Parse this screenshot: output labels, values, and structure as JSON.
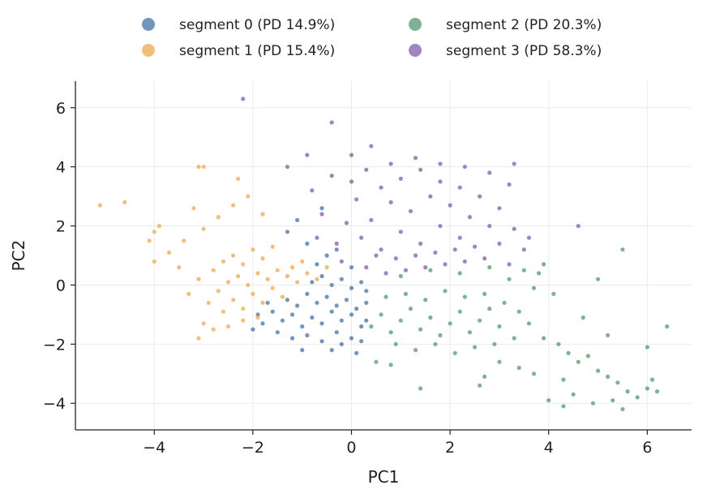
{
  "chart_data": {
    "type": "scatter",
    "title": "",
    "xlabel": "PC1",
    "ylabel": "PC2",
    "xlim": [
      -5.6,
      6.9
    ],
    "ylim": [
      -4.9,
      6.9
    ],
    "xticks": [
      -4,
      -2,
      0,
      2,
      4,
      6
    ],
    "yticks": [
      -4,
      -2,
      0,
      2,
      4,
      6
    ],
    "xtick_labels": [
      "−4",
      "−2",
      "0",
      "2",
      "4",
      "6"
    ],
    "ytick_labels": [
      "−4",
      "−2",
      "0",
      "2",
      "4",
      "6"
    ],
    "grid": true,
    "legend_position": "top-center",
    "series": [
      {
        "name": "segment 0 (PD 14.9%)",
        "color": "#3a6ea5",
        "points": [
          [
            -1.6,
            -0.9
          ],
          [
            -1.4,
            -1.2
          ],
          [
            -1.2,
            -1.0
          ],
          [
            -1.0,
            -1.4
          ],
          [
            -0.8,
            -1.1
          ],
          [
            -0.6,
            -1.3
          ],
          [
            -0.4,
            -0.9
          ],
          [
            -0.2,
            -1.2
          ],
          [
            0.0,
            -1.0
          ],
          [
            0.2,
            -1.4
          ],
          [
            -1.3,
            -0.5
          ],
          [
            -1.1,
            -0.7
          ],
          [
            -0.9,
            -0.3
          ],
          [
            -0.7,
            -0.6
          ],
          [
            -0.5,
            -0.4
          ],
          [
            -0.3,
            -0.7
          ],
          [
            -0.1,
            -0.5
          ],
          [
            0.1,
            -0.8
          ],
          [
            0.3,
            -0.6
          ],
          [
            -0.8,
            0.1
          ],
          [
            -0.6,
            0.3
          ],
          [
            -0.4,
            0.0
          ],
          [
            -0.2,
            0.2
          ],
          [
            0.0,
            -0.1
          ],
          [
            0.2,
            0.1
          ],
          [
            -1.5,
            -1.6
          ],
          [
            -1.2,
            -1.8
          ],
          [
            -0.9,
            -1.7
          ],
          [
            -0.6,
            -1.9
          ],
          [
            -0.3,
            -1.6
          ],
          [
            0.0,
            -1.8
          ],
          [
            0.2,
            -1.9
          ],
          [
            -1.8,
            -1.3
          ],
          [
            -1.7,
            -0.6
          ],
          [
            -0.7,
            0.7
          ],
          [
            -0.5,
            1.0
          ],
          [
            -0.9,
            1.4
          ],
          [
            -1.1,
            2.2
          ],
          [
            -1.3,
            1.8
          ],
          [
            -0.6,
            2.6
          ],
          [
            -1.0,
            -2.2
          ],
          [
            -0.4,
            -2.2
          ],
          [
            0.1,
            -2.3
          ],
          [
            0.3,
            -1.2
          ],
          [
            0.3,
            -0.2
          ],
          [
            -2.0,
            -1.5
          ],
          [
            -1.9,
            -1.0
          ],
          [
            -0.2,
            -2.0
          ],
          [
            0.0,
            0.6
          ],
          [
            -0.3,
            1.2
          ]
        ]
      },
      {
        "name": "segment 1 (PD 15.4%)",
        "color": "#eca646",
        "points": [
          [
            -2.9,
            -0.6
          ],
          [
            -2.7,
            -0.2
          ],
          [
            -2.6,
            -0.9
          ],
          [
            -2.5,
            0.1
          ],
          [
            -2.4,
            -0.5
          ],
          [
            -2.3,
            0.3
          ],
          [
            -2.2,
            -0.8
          ],
          [
            -2.1,
            0.0
          ],
          [
            -2.0,
            -0.3
          ],
          [
            -1.9,
            0.4
          ],
          [
            -1.8,
            -0.6
          ],
          [
            -1.7,
            0.2
          ],
          [
            -1.6,
            -0.1
          ],
          [
            -1.5,
            0.5
          ],
          [
            -1.4,
            -0.4
          ],
          [
            -1.3,
            0.3
          ],
          [
            -1.2,
            0.6
          ],
          [
            -1.1,
            0.1
          ],
          [
            -1.0,
            0.8
          ],
          [
            -0.9,
            0.4
          ],
          [
            -2.8,
            0.5
          ],
          [
            -2.6,
            0.8
          ],
          [
            -2.4,
            1.0
          ],
          [
            -2.2,
            0.7
          ],
          [
            -2.0,
            1.2
          ],
          [
            -1.8,
            0.9
          ],
          [
            -1.6,
            1.3
          ],
          [
            -3.0,
            -1.3
          ],
          [
            -2.8,
            -1.5
          ],
          [
            -2.5,
            -1.4
          ],
          [
            -2.2,
            -1.2
          ],
          [
            -1.9,
            -1.1
          ],
          [
            -3.1,
            0.2
          ],
          [
            -3.3,
            -0.3
          ],
          [
            -3.5,
            0.6
          ],
          [
            -3.7,
            1.1
          ],
          [
            -3.4,
            1.5
          ],
          [
            -3.0,
            1.9
          ],
          [
            -2.7,
            2.3
          ],
          [
            -2.4,
            2.7
          ],
          [
            -2.1,
            3.0
          ],
          [
            -1.8,
            2.4
          ],
          [
            -3.2,
            2.6
          ],
          [
            -3.1,
            4.0
          ],
          [
            -3.0,
            4.0
          ],
          [
            -5.1,
            2.7
          ],
          [
            -4.6,
            2.8
          ],
          [
            -4.0,
            1.8
          ],
          [
            -3.9,
            2.0
          ],
          [
            -4.1,
            1.5
          ],
          [
            -4.0,
            0.8
          ],
          [
            -0.7,
            0.2
          ],
          [
            -0.5,
            0.6
          ],
          [
            -3.1,
            -1.8
          ],
          [
            -2.3,
            3.6
          ]
        ]
      },
      {
        "name": "segment 2 (PD 20.3%)",
        "color": "#4c9468",
        "points": [
          [
            0.4,
            -1.4
          ],
          [
            0.6,
            -1.0
          ],
          [
            0.8,
            -1.6
          ],
          [
            1.0,
            -1.2
          ],
          [
            1.2,
            -0.8
          ],
          [
            1.4,
            -1.5
          ],
          [
            1.6,
            -1.1
          ],
          [
            1.8,
            -1.7
          ],
          [
            2.0,
            -1.3
          ],
          [
            2.2,
            -0.9
          ],
          [
            2.4,
            -1.6
          ],
          [
            2.6,
            -1.2
          ],
          [
            2.8,
            -0.8
          ],
          [
            3.0,
            -1.4
          ],
          [
            0.7,
            -0.4
          ],
          [
            1.1,
            -0.3
          ],
          [
            1.5,
            -0.5
          ],
          [
            1.9,
            -0.2
          ],
          [
            2.3,
            -0.4
          ],
          [
            2.7,
            -0.3
          ],
          [
            3.1,
            -0.6
          ],
          [
            0.9,
            -2.0
          ],
          [
            1.3,
            -2.2
          ],
          [
            1.7,
            -2.0
          ],
          [
            2.1,
            -2.3
          ],
          [
            2.5,
            -2.1
          ],
          [
            2.9,
            -2.0
          ],
          [
            3.3,
            -1.8
          ],
          [
            1.0,
            0.3
          ],
          [
            1.6,
            0.5
          ],
          [
            2.2,
            0.4
          ],
          [
            2.8,
            0.6
          ],
          [
            3.2,
            0.2
          ],
          [
            3.4,
            -0.9
          ],
          [
            3.6,
            -1.3
          ],
          [
            3.5,
            0.5
          ],
          [
            3.8,
            0.4
          ],
          [
            3.9,
            0.7
          ],
          [
            3.7,
            -0.1
          ],
          [
            4.1,
            -0.3
          ],
          [
            3.9,
            -1.8
          ],
          [
            4.2,
            -2.0
          ],
          [
            4.4,
            -2.3
          ],
          [
            4.6,
            -2.6
          ],
          [
            4.8,
            -2.4
          ],
          [
            5.0,
            -2.9
          ],
          [
            5.2,
            -3.1
          ],
          [
            5.4,
            -3.3
          ],
          [
            5.6,
            -3.6
          ],
          [
            5.8,
            -3.8
          ],
          [
            6.0,
            -3.5
          ],
          [
            6.1,
            -3.2
          ],
          [
            6.2,
            -3.6
          ],
          [
            5.5,
            -4.2
          ],
          [
            5.3,
            -3.9
          ],
          [
            4.9,
            -4.0
          ],
          [
            4.5,
            -3.7
          ],
          [
            4.3,
            -3.2
          ],
          [
            4.0,
            -3.9
          ],
          [
            3.7,
            -3.0
          ],
          [
            3.4,
            -2.8
          ],
          [
            3.0,
            -2.6
          ],
          [
            2.7,
            -3.1
          ],
          [
            1.4,
            -3.5
          ],
          [
            0.5,
            -2.6
          ],
          [
            0.8,
            -2.7
          ],
          [
            5.0,
            0.2
          ],
          [
            5.5,
            1.2
          ],
          [
            6.4,
            -1.4
          ],
          [
            4.7,
            -1.1
          ],
          [
            5.2,
            -1.7
          ],
          [
            6.0,
            -2.1
          ],
          [
            4.3,
            -4.1
          ],
          [
            2.6,
            -3.4
          ]
        ]
      },
      {
        "name": "segment 3 (PD 58.3%)",
        "color": "#7a57a7",
        "points": [
          [
            0.2,
            1.6
          ],
          [
            0.4,
            2.2
          ],
          [
            0.6,
            1.2
          ],
          [
            0.8,
            2.8
          ],
          [
            1.0,
            1.8
          ],
          [
            1.2,
            2.5
          ],
          [
            1.4,
            1.4
          ],
          [
            1.6,
            3.0
          ],
          [
            1.8,
            2.0
          ],
          [
            2.0,
            2.7
          ],
          [
            2.2,
            1.6
          ],
          [
            2.4,
            2.3
          ],
          [
            0.3,
            0.6
          ],
          [
            0.5,
            1.0
          ],
          [
            0.7,
            0.4
          ],
          [
            0.9,
            0.9
          ],
          [
            1.1,
            0.5
          ],
          [
            1.3,
            1.0
          ],
          [
            1.5,
            0.6
          ],
          [
            1.7,
            1.1
          ],
          [
            1.9,
            0.7
          ],
          [
            2.1,
            1.2
          ],
          [
            2.3,
            0.8
          ],
          [
            2.5,
            1.3
          ],
          [
            0.6,
            3.3
          ],
          [
            1.0,
            3.6
          ],
          [
            1.4,
            3.9
          ],
          [
            1.8,
            3.5
          ],
          [
            2.2,
            3.3
          ],
          [
            2.6,
            3.0
          ],
          [
            2.8,
            2.0
          ],
          [
            3.0,
            1.4
          ],
          [
            2.7,
            0.9
          ],
          [
            -0.3,
            1.4
          ],
          [
            -0.1,
            2.1
          ],
          [
            0.1,
            2.9
          ],
          [
            0.0,
            3.5
          ],
          [
            -0.2,
            0.8
          ],
          [
            0.3,
            3.9
          ],
          [
            0.8,
            4.1
          ],
          [
            1.3,
            4.3
          ],
          [
            1.8,
            4.1
          ],
          [
            2.3,
            4.0
          ],
          [
            2.8,
            3.8
          ],
          [
            3.2,
            3.4
          ],
          [
            3.0,
            2.6
          ],
          [
            3.3,
            1.9
          ],
          [
            3.5,
            1.2
          ],
          [
            3.2,
            0.7
          ],
          [
            -0.8,
            3.2
          ],
          [
            -0.9,
            4.4
          ],
          [
            -0.4,
            3.7
          ],
          [
            -0.4,
            5.5
          ],
          [
            -2.2,
            6.3
          ],
          [
            0.4,
            4.7
          ],
          [
            -1.3,
            4.0
          ],
          [
            3.3,
            4.1
          ],
          [
            4.6,
            2.0
          ],
          [
            3.6,
            1.6
          ],
          [
            -0.6,
            2.4
          ],
          [
            -0.7,
            1.6
          ],
          [
            0.0,
            4.4
          ]
        ]
      }
    ]
  }
}
